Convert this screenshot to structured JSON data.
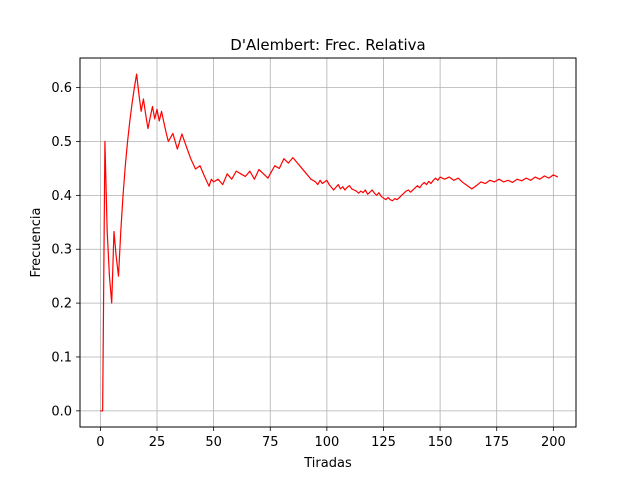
{
  "chart_data": {
    "type": "line",
    "title": "D'Alembert: Frec. Relativa",
    "xlabel": "Tiradas",
    "ylabel": "Frecuencia",
    "xlim": [
      -9,
      210
    ],
    "ylim": [
      -0.03,
      0.655
    ],
    "xticks": [
      0,
      25,
      50,
      75,
      100,
      125,
      150,
      175,
      200
    ],
    "yticks": [
      0.0,
      0.1,
      0.2,
      0.3,
      0.4,
      0.5,
      0.6
    ],
    "xtick_labels": [
      "0",
      "25",
      "50",
      "75",
      "100",
      "125",
      "150",
      "175",
      "200"
    ],
    "ytick_labels": [
      "0.0",
      "0.1",
      "0.2",
      "0.3",
      "0.4",
      "0.5",
      "0.6"
    ],
    "grid": true,
    "series": [
      {
        "color": "#ff0000",
        "x": [
          0,
          1,
          2,
          3,
          4,
          5,
          6,
          7,
          8,
          9,
          10,
          11,
          12,
          13,
          14,
          15,
          16,
          17,
          18,
          19,
          20,
          21,
          22,
          23,
          24,
          25,
          26,
          27,
          28,
          29,
          30,
          32,
          34,
          36,
          38,
          40,
          42,
          44,
          46,
          48,
          49,
          50,
          52,
          54,
          56,
          58,
          60,
          62,
          64,
          66,
          68,
          70,
          72,
          74,
          75,
          77,
          79,
          81,
          83,
          85,
          87,
          89,
          91,
          93,
          95,
          96,
          97,
          98,
          100,
          101,
          102,
          103,
          104,
          105,
          106,
          107,
          108,
          109,
          110,
          111,
          112,
          113,
          114,
          115,
          116,
          117,
          118,
          119,
          120,
          121,
          122,
          123,
          124,
          125,
          126,
          127,
          128,
          129,
          130,
          131,
          132,
          133,
          134,
          135,
          136,
          137,
          138,
          139,
          140,
          141,
          142,
          143,
          144,
          145,
          146,
          147,
          148,
          149,
          150,
          152,
          154,
          156,
          158,
          160,
          162,
          164,
          166,
          168,
          170,
          172,
          174,
          176,
          178,
          180,
          182,
          184,
          186,
          188,
          190,
          192,
          194,
          196,
          198,
          200,
          202
        ],
        "y": [
          0.0,
          0.0,
          0.5,
          0.333,
          0.25,
          0.2,
          0.333,
          0.286,
          0.25,
          0.333,
          0.4,
          0.455,
          0.5,
          0.538,
          0.571,
          0.6,
          0.625,
          0.588,
          0.556,
          0.579,
          0.55,
          0.524,
          0.545,
          0.565,
          0.542,
          0.56,
          0.538,
          0.556,
          0.536,
          0.517,
          0.5,
          0.515,
          0.486,
          0.514,
          0.49,
          0.467,
          0.449,
          0.455,
          0.435,
          0.417,
          0.43,
          0.425,
          0.43,
          0.42,
          0.44,
          0.43,
          0.445,
          0.44,
          0.435,
          0.445,
          0.43,
          0.448,
          0.44,
          0.432,
          0.44,
          0.455,
          0.45,
          0.468,
          0.46,
          0.47,
          0.46,
          0.45,
          0.44,
          0.43,
          0.425,
          0.42,
          0.428,
          0.422,
          0.428,
          0.42,
          0.415,
          0.41,
          0.415,
          0.42,
          0.412,
          0.416,
          0.41,
          0.415,
          0.418,
          0.412,
          0.41,
          0.408,
          0.404,
          0.408,
          0.405,
          0.41,
          0.402,
          0.406,
          0.41,
          0.404,
          0.4,
          0.405,
          0.398,
          0.395,
          0.392,
          0.396,
          0.392,
          0.39,
          0.394,
          0.392,
          0.396,
          0.4,
          0.404,
          0.408,
          0.41,
          0.406,
          0.41,
          0.414,
          0.418,
          0.414,
          0.42,
          0.424,
          0.42,
          0.426,
          0.422,
          0.428,
          0.432,
          0.428,
          0.434,
          0.43,
          0.434,
          0.428,
          0.432,
          0.424,
          0.418,
          0.412,
          0.418,
          0.425,
          0.422,
          0.428,
          0.425,
          0.43,
          0.425,
          0.428,
          0.424,
          0.43,
          0.427,
          0.432,
          0.428,
          0.434,
          0.43,
          0.436,
          0.432,
          0.438,
          0.434
        ]
      }
    ]
  }
}
